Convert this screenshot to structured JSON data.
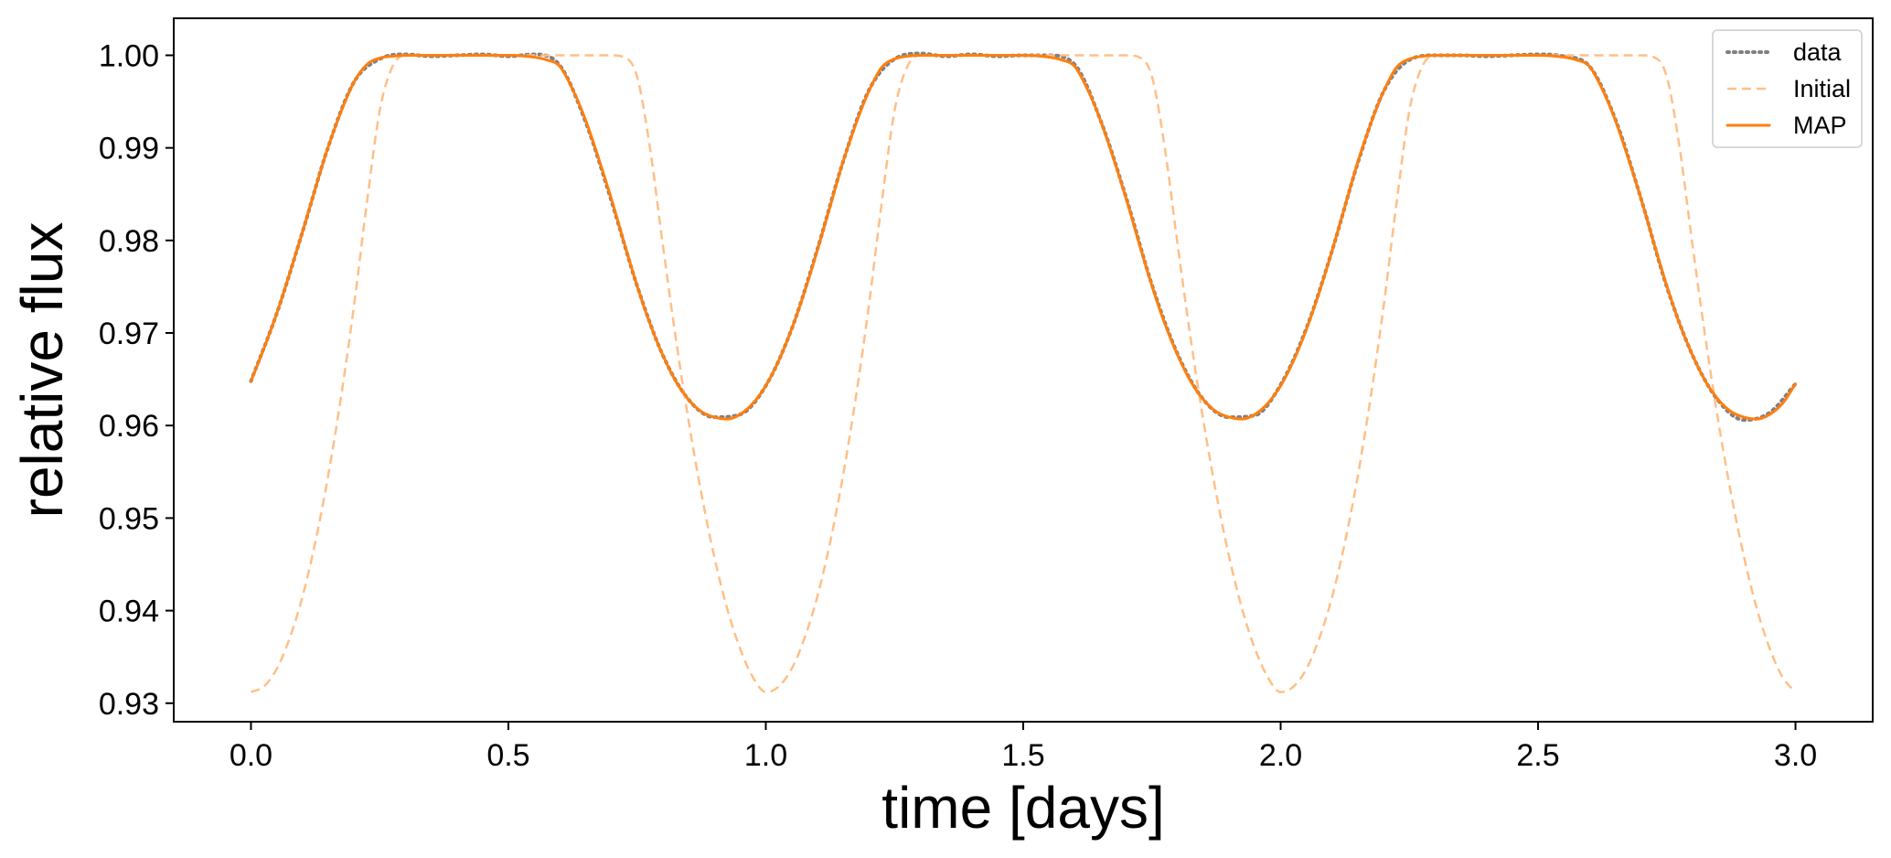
{
  "chart_data": {
    "type": "line",
    "title": "",
    "xlabel": "time [days]",
    "ylabel": "relative flux",
    "xlim": [
      -0.15,
      3.15
    ],
    "ylim": [
      0.928,
      1.004
    ],
    "xticks": [
      0.0,
      0.5,
      1.0,
      1.5,
      2.0,
      2.5,
      3.0
    ],
    "xtick_labels": [
      "0.0",
      "0.5",
      "1.0",
      "1.5",
      "2.0",
      "2.5",
      "3.0"
    ],
    "yticks": [
      0.93,
      0.94,
      0.95,
      0.96,
      0.97,
      0.98,
      0.99,
      1.0
    ],
    "ytick_labels": [
      "0.93",
      "0.94",
      "0.95",
      "0.96",
      "0.97",
      "0.98",
      "0.99",
      "1.00"
    ],
    "grid": false,
    "legend": {
      "position": "top-right",
      "entries": [
        "data",
        "Initial",
        "MAP"
      ]
    },
    "colors": {
      "data": "#808080",
      "initial": "#ffbf86",
      "map": "#ff7f0e"
    },
    "series": [
      {
        "name": "data",
        "style": "dotted",
        "x": [
          0.0,
          0.05,
          0.1,
          0.15,
          0.2,
          0.25,
          0.3,
          0.35,
          0.4,
          0.45,
          0.5,
          0.55,
          0.6,
          0.65,
          0.7,
          0.75,
          0.8,
          0.85,
          0.9,
          0.95,
          1.0,
          1.05,
          1.1,
          1.15,
          1.2,
          1.25,
          1.3,
          1.35,
          1.4,
          1.45,
          1.5,
          1.55,
          1.6,
          1.65,
          1.7,
          1.75,
          1.8,
          1.85,
          1.9,
          1.95,
          2.0,
          2.05,
          2.1,
          2.15,
          2.2,
          2.25,
          2.3,
          2.35,
          2.4,
          2.45,
          2.5,
          2.55,
          2.6,
          2.65,
          2.7,
          2.75,
          2.8,
          2.85,
          2.9,
          2.95,
          3.0
        ],
        "y": [
          0.9648,
          0.9721,
          0.9809,
          0.9901,
          0.9971,
          0.9996,
          1.0001,
          0.9999,
          1.0,
          1.0001,
          0.9999,
          1.0001,
          0.9989,
          0.9928,
          0.9843,
          0.9751,
          0.9676,
          0.9628,
          0.9609,
          0.9612,
          0.9643,
          0.9704,
          0.979,
          0.9885,
          0.9962,
          0.9996,
          1.0002,
          0.9999,
          1.0001,
          0.9999,
          1.0,
          1.0,
          0.999,
          0.993,
          0.9846,
          0.9752,
          0.9677,
          0.9628,
          0.9609,
          0.9611,
          0.9644,
          0.9705,
          0.9789,
          0.9884,
          0.9961,
          0.9995,
          1.0,
          1.0,
          0.9999,
          1.0,
          1.0001,
          0.9999,
          0.9988,
          0.9931,
          0.9845,
          0.975,
          0.9676,
          0.9627,
          0.9606,
          0.9614,
          0.9645
        ]
      },
      {
        "name": "Initial",
        "style": "dashed",
        "x": [
          0.0,
          0.025,
          0.05,
          0.075,
          0.1,
          0.125,
          0.15,
          0.175,
          0.2,
          0.225,
          0.25,
          0.275,
          0.3,
          0.4,
          0.5,
          0.6,
          0.7,
          0.725,
          0.75,
          0.775,
          0.8,
          0.825,
          0.85,
          0.875,
          0.9,
          0.925,
          0.95,
          0.975,
          1.0,
          1.025,
          1.05,
          1.075,
          1.1,
          1.125,
          1.15,
          1.175,
          1.2,
          1.225,
          1.25,
          1.275,
          1.3,
          1.4,
          1.5,
          1.6,
          1.7,
          1.725,
          1.75,
          1.775,
          1.8,
          1.825,
          1.85,
          1.875,
          1.9,
          1.925,
          1.95,
          1.975,
          2.0,
          2.025,
          2.05,
          2.075,
          2.1,
          2.125,
          2.15,
          2.175,
          2.2,
          2.225,
          2.25,
          2.275,
          2.3,
          2.4,
          2.5,
          2.6,
          2.7,
          2.725,
          2.75,
          2.775,
          2.8,
          2.825,
          2.85,
          2.875,
          2.9,
          2.925,
          2.95,
          2.975,
          3.0
        ],
        "y": [
          0.9312,
          0.9318,
          0.9337,
          0.937,
          0.9415,
          0.9474,
          0.9546,
          0.9631,
          0.9729,
          0.984,
          0.994,
          0.9988,
          1.0,
          1.0,
          1.0,
          1.0,
          1.0,
          0.9998,
          0.9977,
          0.99,
          0.9795,
          0.9695,
          0.9605,
          0.9526,
          0.9458,
          0.9402,
          0.9359,
          0.9328,
          0.9312,
          0.9318,
          0.9337,
          0.937,
          0.9415,
          0.9474,
          0.9546,
          0.9631,
          0.9729,
          0.984,
          0.994,
          0.9988,
          1.0,
          1.0,
          1.0,
          1.0,
          1.0,
          0.9998,
          0.9977,
          0.99,
          0.9795,
          0.9695,
          0.9605,
          0.9526,
          0.9458,
          0.9402,
          0.9359,
          0.9328,
          0.9312,
          0.9318,
          0.9337,
          0.937,
          0.9415,
          0.9474,
          0.9546,
          0.9631,
          0.9729,
          0.984,
          0.994,
          0.9988,
          1.0,
          1.0,
          1.0,
          1.0,
          1.0,
          0.9998,
          0.9977,
          0.99,
          0.9795,
          0.9695,
          0.9605,
          0.9526,
          0.9458,
          0.9402,
          0.9359,
          0.9328,
          0.9312
        ]
      },
      {
        "name": "MAP",
        "style": "solid",
        "x": [
          0.0,
          0.025,
          0.05,
          0.075,
          0.1,
          0.125,
          0.15,
          0.175,
          0.2,
          0.225,
          0.25,
          0.275,
          0.3,
          0.4,
          0.5,
          0.55,
          0.575,
          0.6,
          0.625,
          0.65,
          0.675,
          0.7,
          0.725,
          0.75,
          0.775,
          0.8,
          0.825,
          0.85,
          0.875,
          0.9,
          0.925,
          0.95,
          0.975,
          1.0,
          1.025,
          1.05,
          1.075,
          1.1,
          1.125,
          1.15,
          1.175,
          1.2,
          1.225,
          1.25,
          1.275,
          1.3,
          1.4,
          1.5,
          1.55,
          1.575,
          1.6,
          1.625,
          1.65,
          1.675,
          1.7,
          1.725,
          1.75,
          1.775,
          1.8,
          1.825,
          1.85,
          1.875,
          1.9,
          1.925,
          1.95,
          1.975,
          2.0,
          2.025,
          2.05,
          2.075,
          2.1,
          2.125,
          2.15,
          2.175,
          2.2,
          2.225,
          2.25,
          2.275,
          2.3,
          2.4,
          2.5,
          2.55,
          2.575,
          2.6,
          2.625,
          2.65,
          2.675,
          2.7,
          2.725,
          2.75,
          2.775,
          2.8,
          2.825,
          2.85,
          2.875,
          2.9,
          2.925,
          2.95,
          2.975,
          3.0
        ],
        "y": [
          0.9648,
          0.9683,
          0.9721,
          0.9764,
          0.9809,
          0.9856,
          0.9901,
          0.9939,
          0.9971,
          0.999,
          0.9997,
          0.9999,
          1.0,
          1.0,
          1.0,
          0.9998,
          0.9995,
          0.9988,
          0.9963,
          0.993,
          0.9889,
          0.9845,
          0.9797,
          0.9751,
          0.971,
          0.9676,
          0.9648,
          0.9628,
          0.9615,
          0.9609,
          0.9607,
          0.9612,
          0.9624,
          0.9643,
          0.967,
          0.9704,
          0.9744,
          0.9789,
          0.9837,
          0.9885,
          0.9926,
          0.9961,
          0.9987,
          0.9996,
          0.9999,
          1.0,
          1.0,
          1.0,
          0.9998,
          0.9995,
          0.9988,
          0.9963,
          0.993,
          0.9889,
          0.9845,
          0.9797,
          0.9751,
          0.971,
          0.9676,
          0.9648,
          0.9628,
          0.9615,
          0.9609,
          0.9607,
          0.9612,
          0.9624,
          0.9643,
          0.967,
          0.9704,
          0.9744,
          0.9789,
          0.9837,
          0.9885,
          0.9926,
          0.9961,
          0.9987,
          0.9996,
          0.9999,
          1.0,
          1.0,
          1.0,
          0.9998,
          0.9995,
          0.9988,
          0.9963,
          0.993,
          0.9889,
          0.9845,
          0.9797,
          0.9751,
          0.971,
          0.9676,
          0.9648,
          0.9628,
          0.9615,
          0.9609,
          0.9607,
          0.9612,
          0.9624,
          0.9645
        ]
      }
    ]
  }
}
